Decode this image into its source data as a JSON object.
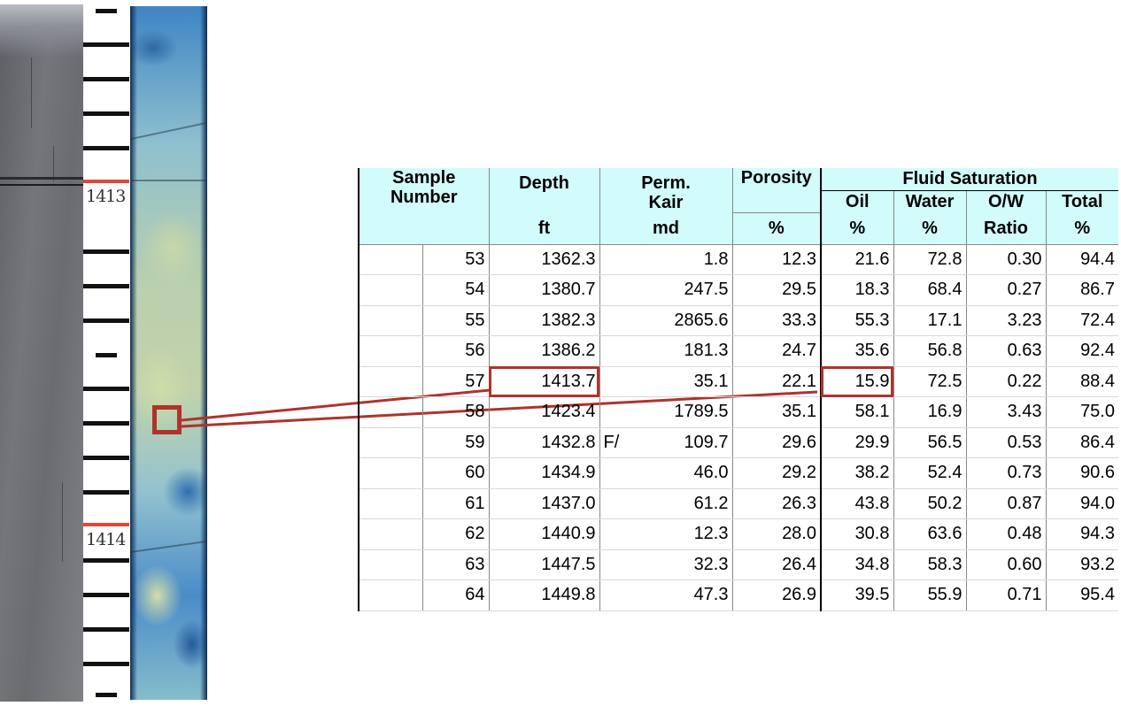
{
  "ruler": {
    "labels": [
      "1413",
      "1414"
    ]
  },
  "table": {
    "headers": {
      "sample_number": [
        "Sample",
        "Number"
      ],
      "depth": "Depth",
      "depth_unit": "ft",
      "perm": [
        "Perm.",
        "Kair"
      ],
      "perm_unit": "md",
      "porosity": "Porosity",
      "porosity_unit": "%",
      "fluid_saturation": "Fluid Saturation",
      "oil": "Oil",
      "oil_unit": "%",
      "water": "Water",
      "water_unit": "%",
      "ow_ratio": "O/W",
      "ow_ratio_unit": "Ratio",
      "total": "Total",
      "total_unit": "%"
    },
    "rows": [
      {
        "sample": "53",
        "depth": "1362.3",
        "flag": "",
        "perm": "1.8",
        "porosity": "12.3",
        "oil": "21.6",
        "water": "72.8",
        "ratio": "0.30",
        "total": "94.4"
      },
      {
        "sample": "54",
        "depth": "1380.7",
        "flag": "",
        "perm": "247.5",
        "porosity": "29.5",
        "oil": "18.3",
        "water": "68.4",
        "ratio": "0.27",
        "total": "86.7"
      },
      {
        "sample": "55",
        "depth": "1382.3",
        "flag": "",
        "perm": "2865.6",
        "porosity": "33.3",
        "oil": "55.3",
        "water": "17.1",
        "ratio": "3.23",
        "total": "72.4"
      },
      {
        "sample": "56",
        "depth": "1386.2",
        "flag": "",
        "perm": "181.3",
        "porosity": "24.7",
        "oil": "35.6",
        "water": "56.8",
        "ratio": "0.63",
        "total": "92.4"
      },
      {
        "sample": "57",
        "depth": "1413.7",
        "flag": "",
        "perm": "35.1",
        "porosity": "22.1",
        "oil": "15.9",
        "water": "72.5",
        "ratio": "0.22",
        "total": "88.4"
      },
      {
        "sample": "58",
        "depth": "1423.4",
        "flag": "",
        "perm": "1789.5",
        "porosity": "35.1",
        "oil": "58.1",
        "water": "16.9",
        "ratio": "3.43",
        "total": "75.0"
      },
      {
        "sample": "59",
        "depth": "1432.8",
        "flag": "F/",
        "perm": "109.7",
        "porosity": "29.6",
        "oil": "29.9",
        "water": "56.5",
        "ratio": "0.53",
        "total": "86.4"
      },
      {
        "sample": "60",
        "depth": "1434.9",
        "flag": "",
        "perm": "46.0",
        "porosity": "29.2",
        "oil": "38.2",
        "water": "52.4",
        "ratio": "0.73",
        "total": "90.6"
      },
      {
        "sample": "61",
        "depth": "1437.0",
        "flag": "",
        "perm": "61.2",
        "porosity": "26.3",
        "oil": "43.8",
        "water": "50.2",
        "ratio": "0.87",
        "total": "94.0"
      },
      {
        "sample": "62",
        "depth": "1440.9",
        "flag": "",
        "perm": "12.3",
        "porosity": "28.0",
        "oil": "30.8",
        "water": "63.6",
        "ratio": "0.48",
        "total": "94.3"
      },
      {
        "sample": "63",
        "depth": "1447.5",
        "flag": "",
        "perm": "32.3",
        "porosity": "26.4",
        "oil": "34.8",
        "water": "58.3",
        "ratio": "0.60",
        "total": "93.2"
      },
      {
        "sample": "64",
        "depth": "1449.8",
        "flag": "",
        "perm": "47.3",
        "porosity": "26.9",
        "oil": "39.5",
        "water": "55.9",
        "ratio": "0.71",
        "total": "95.4"
      }
    ],
    "highlighted_sample": "57"
  },
  "colors": {
    "header_bg": "#d2fbfb",
    "highlight": "#b0332a",
    "ruler_red": "#e0473a"
  }
}
